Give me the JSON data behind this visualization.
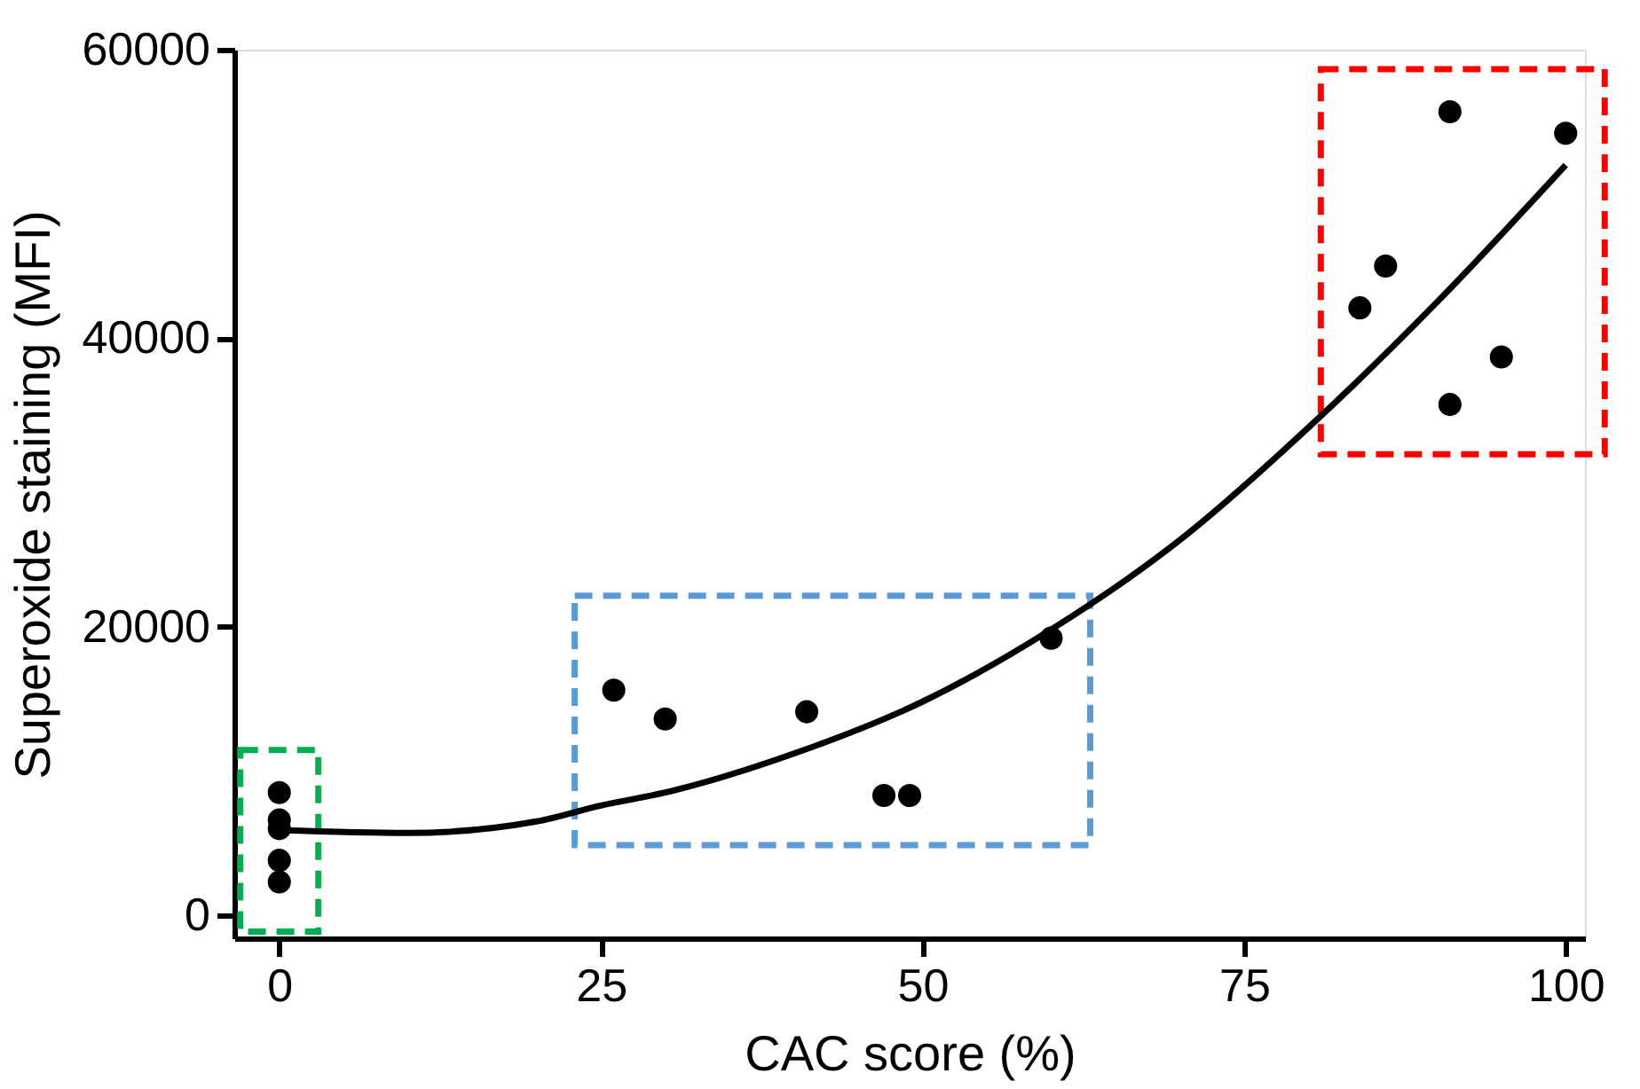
{
  "chart_data": {
    "type": "scatter",
    "xlabel": "CAC score (%)",
    "ylabel": "Superoxide staining (MFI)",
    "xlim": [
      -3.5,
      101.5
    ],
    "xticks": [
      0,
      25,
      50,
      75,
      100
    ],
    "ylim": [
      -1600,
      60000
    ],
    "yticks": [
      0,
      20000,
      40000,
      60000
    ],
    "grid": false,
    "marker": "circle",
    "series": [
      {
        "color": "#000000",
        "x": [
          0,
          0,
          0,
          0,
          0
        ],
        "values": [
          8500,
          6600,
          6000,
          3800,
          2300
        ]
      },
      {
        "color": "#000000",
        "x": [
          26,
          30,
          41,
          47,
          49,
          60
        ],
        "values": [
          15600,
          13600,
          14100,
          8300,
          8300,
          19200
        ]
      },
      {
        "color": "#000000",
        "x": [
          84,
          86,
          91,
          91,
          95,
          100
        ],
        "values": [
          42100,
          45000,
          55700,
          35400,
          38700,
          54200
        ]
      },
      {
        "color": "#000000",
        "type": "line",
        "marker": "none",
        "line_style": "solid",
        "x": [
          0,
          10,
          20,
          25,
          30,
          40,
          50,
          60,
          70,
          80,
          90,
          100
        ],
        "values": [
          5900,
          5700,
          6500,
          7600,
          8500,
          11200,
          14800,
          19800,
          26000,
          33800,
          42500,
          52000
        ]
      }
    ]
  }
}
